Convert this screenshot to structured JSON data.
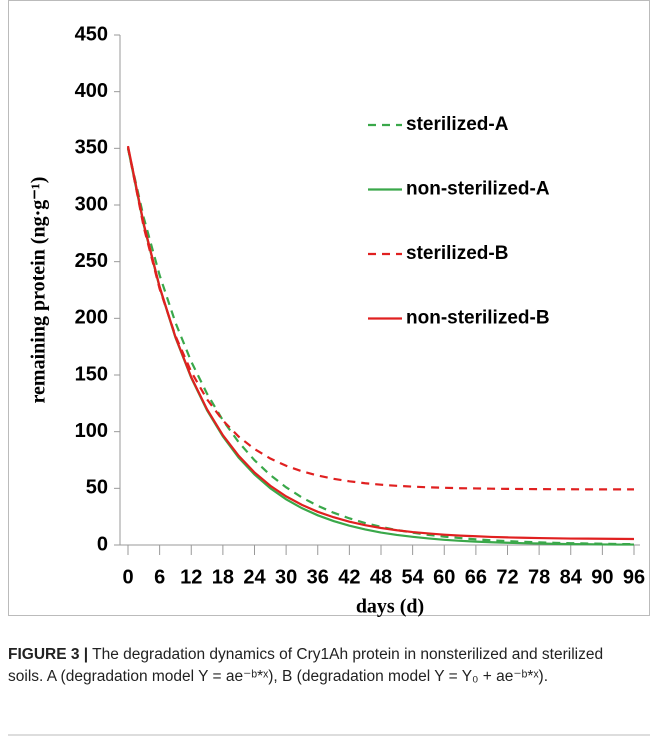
{
  "chart_data": {
    "type": "line",
    "x_label": "days (d)",
    "y_label": "remaining protein (ng·g⁻¹)",
    "x": [
      0,
      3,
      6,
      9,
      12,
      15,
      18,
      21,
      24,
      27,
      30,
      33,
      36,
      39,
      42,
      45,
      48,
      51,
      54,
      57,
      60,
      63,
      66,
      69,
      72,
      75,
      78,
      81,
      84,
      87,
      90,
      93,
      96
    ],
    "xlim": [
      0,
      96
    ],
    "xticks": [
      0,
      6,
      12,
      18,
      24,
      30,
      36,
      42,
      48,
      54,
      60,
      66,
      72,
      78,
      84,
      90,
      96
    ],
    "ylim": [
      0,
      450
    ],
    "yticks": [
      0,
      50,
      100,
      150,
      200,
      250,
      300,
      350,
      400,
      450
    ],
    "legend": "upper right",
    "series": [
      {
        "name": "sterilized-A",
        "color": "#3aa84a",
        "dashed": true,
        "values": [
          350,
          288.6,
          238.0,
          196.3,
          161.8,
          133.5,
          110.0,
          90.7,
          74.8,
          61.7,
          50.9,
          41.9,
          34.6,
          28.5,
          23.5,
          19.4,
          16.0,
          13.2,
          10.9,
          8.9,
          7.4,
          6.1,
          5.0,
          4.1,
          3.4,
          2.8,
          2.3,
          1.9,
          1.6,
          1.3,
          1.1,
          0.9,
          0.7
        ]
      },
      {
        "name": "non-sterilized-A",
        "color": "#3aa84a",
        "dashed": false,
        "values": [
          350,
          282.0,
          227.2,
          183.1,
          147.5,
          118.8,
          95.8,
          77.1,
          62.2,
          50.1,
          40.3,
          32.5,
          26.2,
          21.1,
          17.0,
          13.7,
          11.0,
          8.9,
          7.2,
          5.8,
          4.6,
          3.7,
          3.0,
          2.4,
          2.0,
          1.6,
          1.3,
          1.0,
          0.8,
          0.7,
          0.5,
          0.4,
          0.4
        ]
      },
      {
        "name": "sterilized-B",
        "color": "#e02020",
        "dashed": true,
        "values": [
          351,
          280.2,
          226.1,
          184.6,
          152.8,
          128.5,
          109.9,
          95.6,
          84.7,
          76.3,
          69.9,
          65.0,
          61.3,
          58.4,
          56.2,
          54.5,
          53.2,
          52.2,
          51.5,
          50.9,
          50.5,
          50.1,
          49.9,
          49.7,
          49.5,
          49.4,
          49.3,
          49.2,
          49.2,
          49.1,
          49.1,
          49.1,
          49.1
        ]
      },
      {
        "name": "non-sterilized-B",
        "color": "#e02020",
        "dashed": false,
        "values": [
          352,
          283.1,
          227.9,
          183.6,
          148.1,
          119.7,
          96.9,
          78.7,
          64.0,
          52.3,
          42.9,
          35.4,
          29.3,
          24.5,
          20.6,
          17.5,
          15.0,
          13.0,
          11.4,
          10.2,
          9.1,
          8.3,
          7.7,
          7.1,
          6.7,
          6.4,
          6.1,
          5.9,
          5.7,
          5.6,
          5.5,
          5.4,
          5.3
        ]
      }
    ]
  },
  "caption": {
    "label": "FIGURE 3 |",
    "text": "The degradation dynamics of Cry1Ah protein in nonsterilized and sterilized soils. A (degradation model Y = ae⁻ᵇ*ˣ), B (degradation model Y = Y₀ + ae⁻ᵇ*ˣ)."
  }
}
